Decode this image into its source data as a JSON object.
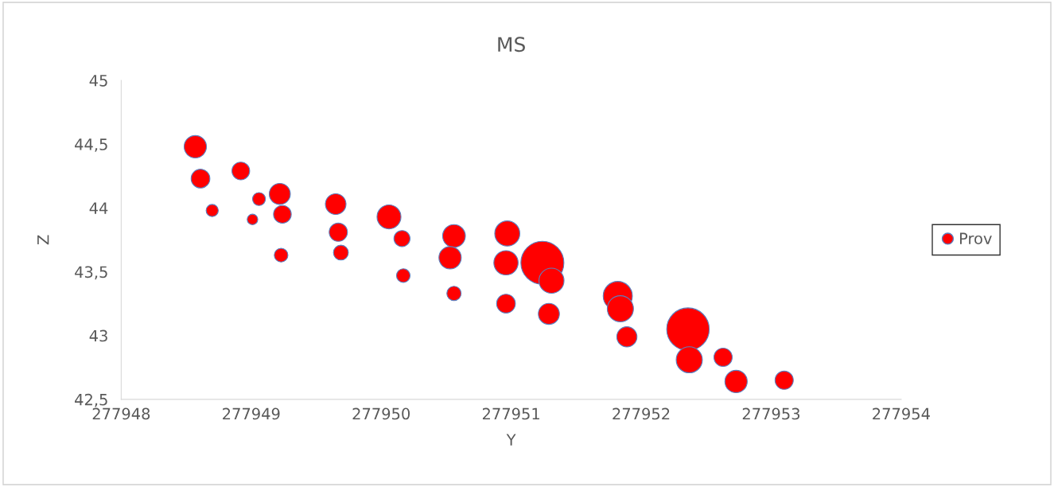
{
  "chart_data": {
    "type": "bubble",
    "title": "MS",
    "xlabel": "Y",
    "ylabel": "Z",
    "xlim": [
      277948,
      277954
    ],
    "xticks": [
      277948,
      277949,
      277950,
      277951,
      277952,
      277953,
      277954
    ],
    "ylim": [
      42.5,
      45
    ],
    "yticks": [
      {
        "value": 42.5,
        "label": "42,5"
      },
      {
        "value": 43,
        "label": "43"
      },
      {
        "value": 43.5,
        "label": "43,5"
      },
      {
        "value": 44,
        "label": "44"
      },
      {
        "value": 44.5,
        "label": "44,5"
      },
      {
        "value": 45,
        "label": "45"
      }
    ],
    "grid": false,
    "legend": "right",
    "marker": "circle",
    "series": [
      {
        "name": "Prov",
        "color": "#ff0000",
        "x": [
          277948.57,
          277948.61,
          277948.7,
          277948.92,
          277949.06,
          277949.01,
          277949.22,
          277949.24,
          277949.23,
          277949.65,
          277949.67,
          277949.69,
          277950.06,
          277950.16,
          277950.17,
          277950.56,
          277950.53,
          277950.56,
          277950.97,
          277950.96,
          277950.96,
          277951.24,
          277951.31,
          277951.29,
          277951.82,
          277951.84,
          277951.89,
          277952.36,
          277952.37,
          277952.63,
          277952.73,
          277953.1
        ],
        "values": [
          44.48,
          44.23,
          43.98,
          44.29,
          44.07,
          43.91,
          44.11,
          43.95,
          43.63,
          44.03,
          43.81,
          43.65,
          43.93,
          43.76,
          43.47,
          43.78,
          43.61,
          43.33,
          43.8,
          43.57,
          43.25,
          43.57,
          43.43,
          43.17,
          43.31,
          43.21,
          42.99,
          43.05,
          42.81,
          42.83,
          42.64,
          42.65
        ],
        "sizes": [
          0.27,
          0.19,
          0.08,
          0.17,
          0.09,
          0.06,
          0.24,
          0.17,
          0.1,
          0.23,
          0.18,
          0.12,
          0.31,
          0.14,
          0.1,
          0.28,
          0.27,
          0.11,
          0.34,
          0.32,
          0.19,
          1,
          0.34,
          0.24,
          0.46,
          0.37,
          0.22,
          0.98,
          0.37,
          0.18,
          0.27,
          0.18
        ]
      }
    ]
  }
}
